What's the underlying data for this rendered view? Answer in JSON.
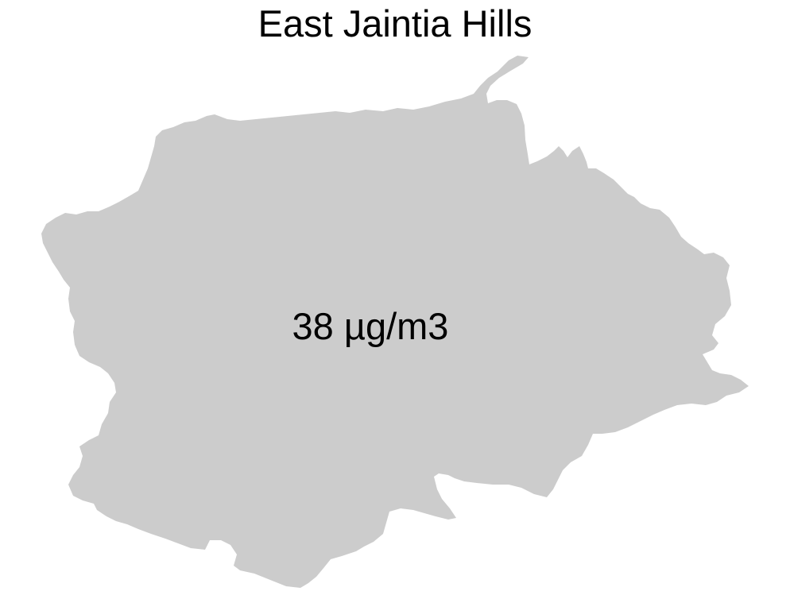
{
  "map": {
    "title": "East Jaintia Hills",
    "region_name": "East Jaintia Hills",
    "value_label": "38 µg/m3",
    "fill_color": "#cccccc",
    "text_color": "#000000",
    "background_color": "#ffffff"
  }
}
